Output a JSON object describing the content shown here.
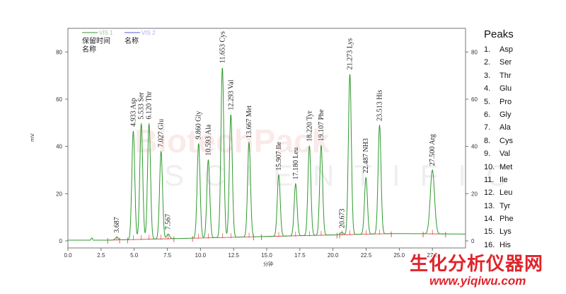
{
  "chart_data": {
    "type": "line",
    "ylabel": "mV",
    "xlabel": "分钟",
    "xlim": [
      0,
      30
    ],
    "ylim": [
      -3,
      90
    ],
    "x_ticks": [
      0.0,
      2.5,
      5.0,
      7.5,
      10.0,
      12.5,
      15.0,
      17.5,
      20.0,
      22.5,
      25.0,
      27.5
    ],
    "x_tick_labels": [
      "0.0",
      "2.5",
      "5.0",
      "7.5",
      "10.0",
      "12.5",
      "15.0",
      "17.5",
      "20.0",
      "22.5",
      "25.0",
      "27.5"
    ],
    "y_ticks": [
      0,
      20,
      40,
      60,
      80
    ],
    "y_tick_labels": [
      "0",
      "20",
      "40",
      "60",
      "80"
    ],
    "legend": {
      "series": [
        "VIS 1",
        "VIS 2"
      ],
      "retention_time_label": "保留时间",
      "name_label_1": "名称",
      "name_label_2": "名称"
    },
    "series": [
      {
        "name": "VIS 1",
        "color": "#2f9a2f"
      },
      {
        "name": "VIS 2",
        "color": "#5a5ae0"
      }
    ],
    "peaks": [
      {
        "rt": 3.687,
        "label": "3.687",
        "height": 1.2
      },
      {
        "rt": 4.933,
        "label": "4.933  Asp",
        "height": 46
      },
      {
        "rt": 5.533,
        "label": "5.533  Ser",
        "height": 49
      },
      {
        "rt": 6.12,
        "label": "6.120  Thr",
        "height": 49
      },
      {
        "rt": 7.027,
        "label": "7.027  Glu",
        "height": 37
      },
      {
        "rt": 7.567,
        "label": "7.567",
        "height": 2
      },
      {
        "rt": 9.86,
        "label": "9.860  Gly",
        "height": 40
      },
      {
        "rt": 10.593,
        "label": "10.593  Ala",
        "height": 33
      },
      {
        "rt": 11.653,
        "label": "11.653  Cys",
        "height": 72
      },
      {
        "rt": 12.293,
        "label": "12.293  Val",
        "height": 52
      },
      {
        "rt": 13.667,
        "label": "13.667  Met",
        "height": 40
      },
      {
        "rt": 15.907,
        "label": "15.907  Ile",
        "height": 26
      },
      {
        "rt": 17.18,
        "label": "17.180  Leu",
        "height": 22
      },
      {
        "rt": 18.22,
        "label": "18.220  Tyr",
        "height": 38
      },
      {
        "rt": 19.107,
        "label": "19.107  Phe",
        "height": 38
      },
      {
        "rt": 20.673,
        "label": "20.673",
        "height": 1
      },
      {
        "rt": 21.273,
        "label": "21.273  Lys",
        "height": 68
      },
      {
        "rt": 22.487,
        "label": "22.487  NH3",
        "height": 24
      },
      {
        "rt": 23.513,
        "label": "23.513  His",
        "height": 46
      },
      {
        "rt": 27.5,
        "label": "27.500  Arg",
        "height": 27
      }
    ]
  },
  "peaks_panel": {
    "title": "Peaks",
    "items": [
      {
        "num": "1.",
        "name": "Asp"
      },
      {
        "num": "2.",
        "name": "Ser"
      },
      {
        "num": "3.",
        "name": "Thr"
      },
      {
        "num": "4.",
        "name": "Glu"
      },
      {
        "num": "5.",
        "name": "Pro"
      },
      {
        "num": "6.",
        "name": "Gly"
      },
      {
        "num": "7.",
        "name": "Ala"
      },
      {
        "num": "8.",
        "name": "Cys"
      },
      {
        "num": "9.",
        "name": "Val"
      },
      {
        "num": "10.",
        "name": "Met"
      },
      {
        "num": "11.",
        "name": "Ile"
      },
      {
        "num": "12.",
        "name": "Leu"
      },
      {
        "num": "13.",
        "name": "Tyr"
      },
      {
        "num": "14.",
        "name": "Phe"
      },
      {
        "num": "15.",
        "name": "Lys"
      },
      {
        "num": "16.",
        "name": "His"
      }
    ]
  },
  "watermark": {
    "line1": "BiotechPack",
    "line2": "SCIENTIFIC"
  },
  "brand": {
    "name": "生化分析仪器网",
    "url": "www.yiqiwu.com"
  }
}
